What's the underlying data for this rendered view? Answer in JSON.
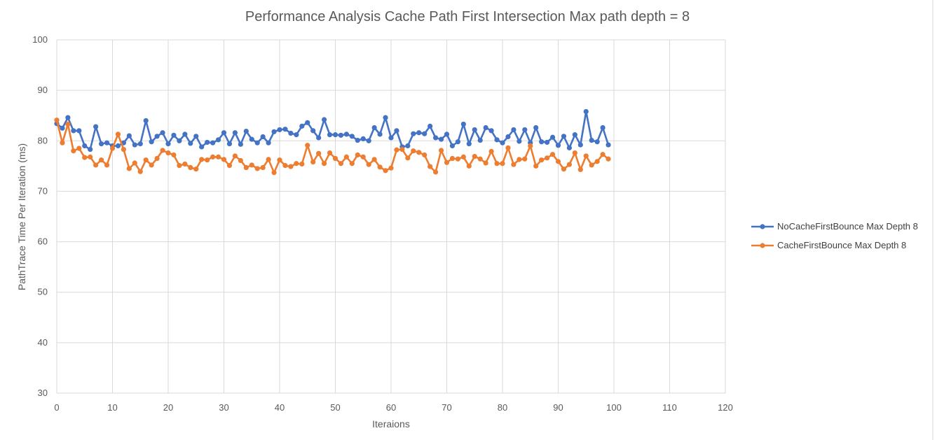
{
  "chart_data": {
    "type": "line",
    "title": "Performance Analysis Cache Path First Intersection Max path depth = 8",
    "xlabel": "Iteraions",
    "ylabel": "PathTrace Time Per Iteration (ms)",
    "xlim": [
      0,
      120
    ],
    "ylim": [
      30,
      100
    ],
    "x_ticks": [
      0,
      10,
      20,
      30,
      40,
      50,
      60,
      70,
      80,
      90,
      100,
      110,
      120
    ],
    "y_ticks": [
      30,
      40,
      50,
      60,
      70,
      80,
      90,
      100
    ],
    "grid": true,
    "legend_position": "right",
    "x": [
      0,
      1,
      2,
      3,
      4,
      5,
      6,
      7,
      8,
      9,
      10,
      11,
      12,
      13,
      14,
      15,
      16,
      17,
      18,
      19,
      20,
      21,
      22,
      23,
      24,
      25,
      26,
      27,
      28,
      29,
      30,
      31,
      32,
      33,
      34,
      35,
      36,
      37,
      38,
      39,
      40,
      41,
      42,
      43,
      44,
      45,
      46,
      47,
      48,
      49,
      50,
      51,
      52,
      53,
      54,
      55,
      56,
      57,
      58,
      59,
      60,
      61,
      62,
      63,
      64,
      65,
      66,
      67,
      68,
      69,
      70,
      71,
      72,
      73,
      74,
      75,
      76,
      77,
      78,
      79,
      80,
      81,
      82,
      83,
      84,
      85,
      86,
      87,
      88,
      89,
      90,
      91,
      92,
      93,
      94,
      95,
      96,
      97,
      98,
      99
    ],
    "series": [
      {
        "name": "NoCacheFirstBounce Max Depth 8",
        "color": "#4472C4",
        "values": [
          83.4,
          82.5,
          84.6,
          82.0,
          82.0,
          79.0,
          78.3,
          82.8,
          79.4,
          79.6,
          79.0,
          79.0,
          79.6,
          81.0,
          79.2,
          79.4,
          84.0,
          79.8,
          80.9,
          81.6,
          79.4,
          81.1,
          80.0,
          81.3,
          79.5,
          80.9,
          78.8,
          79.7,
          79.6,
          80.2,
          81.6,
          79.4,
          81.6,
          79.3,
          81.9,
          80.3,
          79.6,
          80.8,
          79.6,
          81.8,
          82.2,
          82.3,
          81.5,
          81.2,
          82.9,
          83.6,
          82.0,
          80.6,
          84.2,
          81.2,
          81.2,
          81.1,
          81.3,
          80.9,
          80.1,
          80.4,
          80.0,
          82.6,
          81.3,
          84.6,
          80.6,
          82.0,
          78.8,
          79.0,
          81.4,
          81.6,
          81.4,
          82.9,
          80.6,
          80.3,
          81.3,
          79.0,
          79.8,
          83.3,
          79.4,
          82.2,
          80.1,
          82.6,
          82.0,
          80.2,
          79.6,
          80.8,
          82.2,
          79.9,
          82.2,
          79.6,
          82.6,
          79.8,
          79.7,
          80.7,
          79.1,
          80.9,
          78.6,
          81.2,
          79.2,
          85.8,
          80.1,
          79.8,
          82.6,
          79.2
        ]
      },
      {
        "name": "CacheFirstBounce Max Depth 8",
        "color": "#ED7D31",
        "values": [
          84.1,
          79.6,
          83.3,
          78.0,
          78.5,
          76.7,
          76.8,
          75.2,
          76.2,
          75.2,
          78.5,
          81.3,
          78.3,
          74.5,
          75.6,
          73.9,
          76.2,
          75.2,
          76.5,
          78.1,
          77.6,
          77.2,
          75.1,
          75.4,
          74.7,
          74.4,
          76.3,
          76.2,
          76.8,
          76.8,
          76.3,
          75.1,
          77.0,
          76.1,
          74.7,
          75.2,
          74.5,
          74.7,
          76.3,
          73.7,
          76.2,
          75.1,
          74.9,
          75.5,
          75.4,
          79.1,
          75.8,
          77.5,
          75.5,
          77.6,
          76.5,
          75.5,
          76.8,
          75.5,
          77.2,
          76.8,
          75.3,
          76.3,
          74.8,
          74.1,
          74.6,
          78.2,
          78.3,
          76.6,
          78.0,
          77.7,
          77.2,
          74.9,
          73.8,
          78.1,
          75.7,
          76.5,
          76.4,
          76.8,
          75.0,
          76.9,
          76.4,
          75.6,
          77.9,
          75.5,
          75.5,
          78.6,
          75.3,
          76.3,
          76.4,
          79.0,
          75.0,
          76.2,
          76.6,
          77.3,
          75.9,
          74.4,
          75.3,
          77.6,
          74.3,
          77.0,
          75.2,
          75.9,
          77.3,
          76.4
        ]
      }
    ]
  }
}
